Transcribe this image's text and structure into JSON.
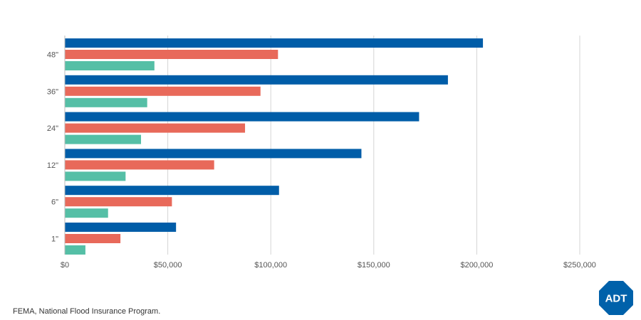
{
  "chart_data": {
    "type": "bar",
    "orientation": "horizontal",
    "categories": [
      "48\"",
      "36\"",
      "24\"",
      "12\"",
      "6\"",
      "1\""
    ],
    "series": [
      {
        "values": [
          203000,
          186000,
          172000,
          144000,
          104000,
          54000
        ],
        "color": "#005DA8"
      },
      {
        "values": [
          103500,
          95000,
          87500,
          72500,
          52000,
          27000
        ],
        "color": "#E8695A"
      },
      {
        "values": [
          43500,
          40000,
          37000,
          29500,
          21000,
          10000
        ],
        "color": "#55BFA6"
      }
    ],
    "xlim": [
      0,
      250000
    ],
    "x_ticks": [
      0,
      50000,
      100000,
      150000,
      200000,
      250000
    ],
    "x_tick_labels": [
      "$0",
      "$50,000",
      "$100,000",
      "$150,000",
      "$200,000",
      "$250,000"
    ],
    "grid": true,
    "title": "",
    "xlabel": "",
    "ylabel": ""
  },
  "source": "FEMA, National Flood Insurance Program.",
  "logo": {
    "text": "ADT",
    "color": "#0061AA"
  }
}
